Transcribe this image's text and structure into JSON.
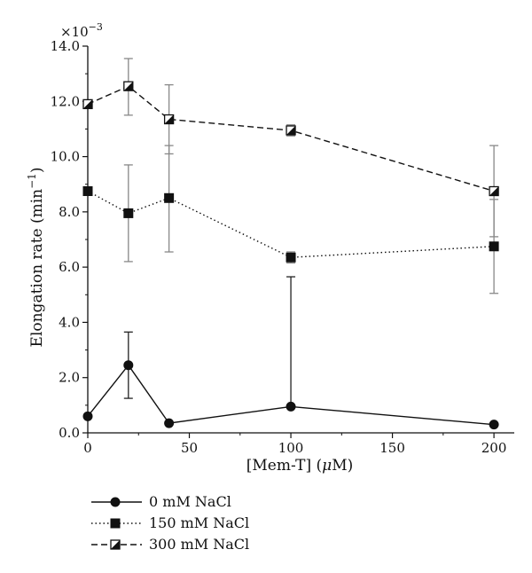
{
  "chart_data": {
    "type": "line",
    "title": "",
    "xlabel": "[Mem-T] (μM)",
    "ylabel": "Elongation rate (min",
    "ylabel_sup": "−1",
    "ylabel_close": ")",
    "y_multiplier": "×10",
    "y_multiplier_exp": "−3",
    "xlim": [
      0,
      210
    ],
    "ylim": [
      0,
      14.0
    ],
    "x_ticks": [
      0,
      50,
      100,
      150,
      200
    ],
    "x_tick_labels": [
      "0",
      "50",
      "100",
      "150",
      "200"
    ],
    "y_ticks": [
      0,
      2,
      4,
      6,
      8,
      10,
      12,
      14
    ],
    "y_tick_labels": [
      "0.0",
      "2.0",
      "4.0",
      "6.0",
      "8.0",
      "10.0",
      "12.0",
      "14.0"
    ],
    "grid": false,
    "legend_position": "bottom-left",
    "x": [
      0,
      20,
      40,
      100,
      200
    ],
    "series": [
      {
        "name": "0 mM NaCl",
        "marker": "circle",
        "line": "solid",
        "values": [
          0.6,
          2.45,
          0.35,
          0.95,
          0.3
        ],
        "error_upper": [
          0.6,
          3.65,
          0.35,
          5.65,
          0.3
        ],
        "error_lower": [
          0.6,
          1.25,
          0.35,
          0.95,
          0.3
        ]
      },
      {
        "name": "150 mM NaCl",
        "marker": "square",
        "line": "dotted",
        "values": [
          8.75,
          7.95,
          8.5,
          6.35,
          6.75
        ],
        "error_upper": [
          8.75,
          9.7,
          10.4,
          6.55,
          8.45
        ],
        "error_lower": [
          8.75,
          6.2,
          6.55,
          6.15,
          5.05
        ]
      },
      {
        "name": "300 mM NaCl",
        "marker": "half-filled-square",
        "line": "dashed",
        "values": [
          11.9,
          12.55,
          11.35,
          10.95,
          8.75
        ],
        "error_upper": [
          11.9,
          13.55,
          12.6,
          11.15,
          10.4
        ],
        "error_lower": [
          11.9,
          11.5,
          10.1,
          10.75,
          7.1
        ]
      }
    ]
  }
}
